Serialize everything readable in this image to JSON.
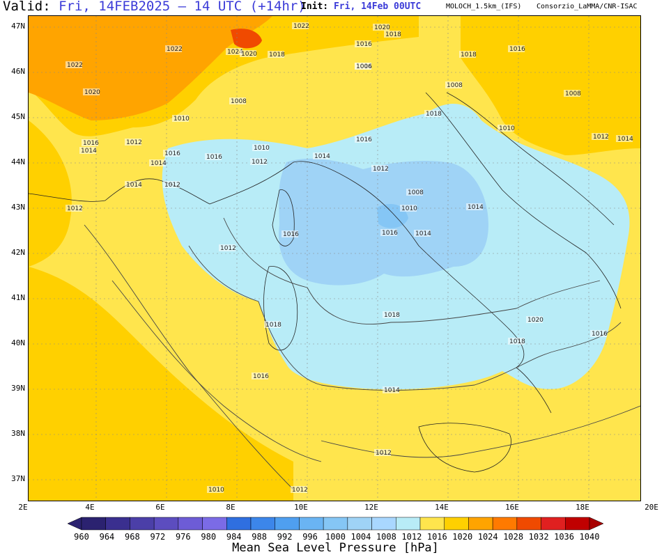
{
  "header": {
    "valid_label": "Valid:",
    "valid_value": "Fri, 14FEB2025 – 14 UTC (+14hr)",
    "init_label": "Init:",
    "init_value": "Fri, 14Feb 00UTC",
    "model": "MOLOCH_1.5km_(IFS)",
    "org": "Consorzio_LaMMA/CNR-ISAC"
  },
  "lat_labels": [
    "47N",
    "46N",
    "45N",
    "44N",
    "43N",
    "42N",
    "41N",
    "40N",
    "39N",
    "38N",
    "37N"
  ],
  "lon_labels": [
    "2E",
    "4E",
    "6E",
    "8E",
    "10E",
    "12E",
    "14E",
    "16E",
    "18E",
    "20E"
  ],
  "isobar_labels": [
    "1022",
    "1020",
    "1022",
    "1022",
    "1024",
    "1020",
    "1018",
    "1016",
    "1014",
    "1020",
    "1018",
    "1016",
    "1018",
    "1016",
    "1014",
    "1012",
    "1010",
    "1008",
    "1006",
    "1008",
    "1008",
    "1010",
    "1012",
    "1014",
    "1016",
    "1018",
    "1016",
    "1014",
    "1012",
    "1010",
    "1012",
    "1014",
    "1012",
    "1010",
    "1008",
    "1016",
    "1014",
    "1012",
    "1014",
    "1016",
    "1018",
    "1016",
    "1018",
    "1020",
    "1018",
    "1016",
    "1014",
    "1012",
    "1010",
    "1012",
    "1012",
    "1014",
    "1016"
  ],
  "colorbar": {
    "title": "Mean Sea Level Pressure [hPa]",
    "labels": [
      "960",
      "964",
      "968",
      "972",
      "976",
      "980",
      "984",
      "988",
      "992",
      "996",
      "1000",
      "1004",
      "1008",
      "1012",
      "1016",
      "1020",
      "1024",
      "1028",
      "1032",
      "1036",
      "1040"
    ],
    "colors": [
      "#2b2270",
      "#3a2f8f",
      "#4b3fa8",
      "#5c4dbf",
      "#6d5cd6",
      "#7b6be6",
      "#2f6fe0",
      "#3c86ea",
      "#4f9ff0",
      "#6ab4f3",
      "#85c6f5",
      "#9fd3f6",
      "#a9d7ff",
      "#b8ecf7",
      "#ffe54d",
      "#ffd000",
      "#ffa400",
      "#ff7a00",
      "#f04a00",
      "#e02020",
      "#c00000"
    ],
    "arrow_left": "#2b2270",
    "arrow_right": "#a80000"
  }
}
